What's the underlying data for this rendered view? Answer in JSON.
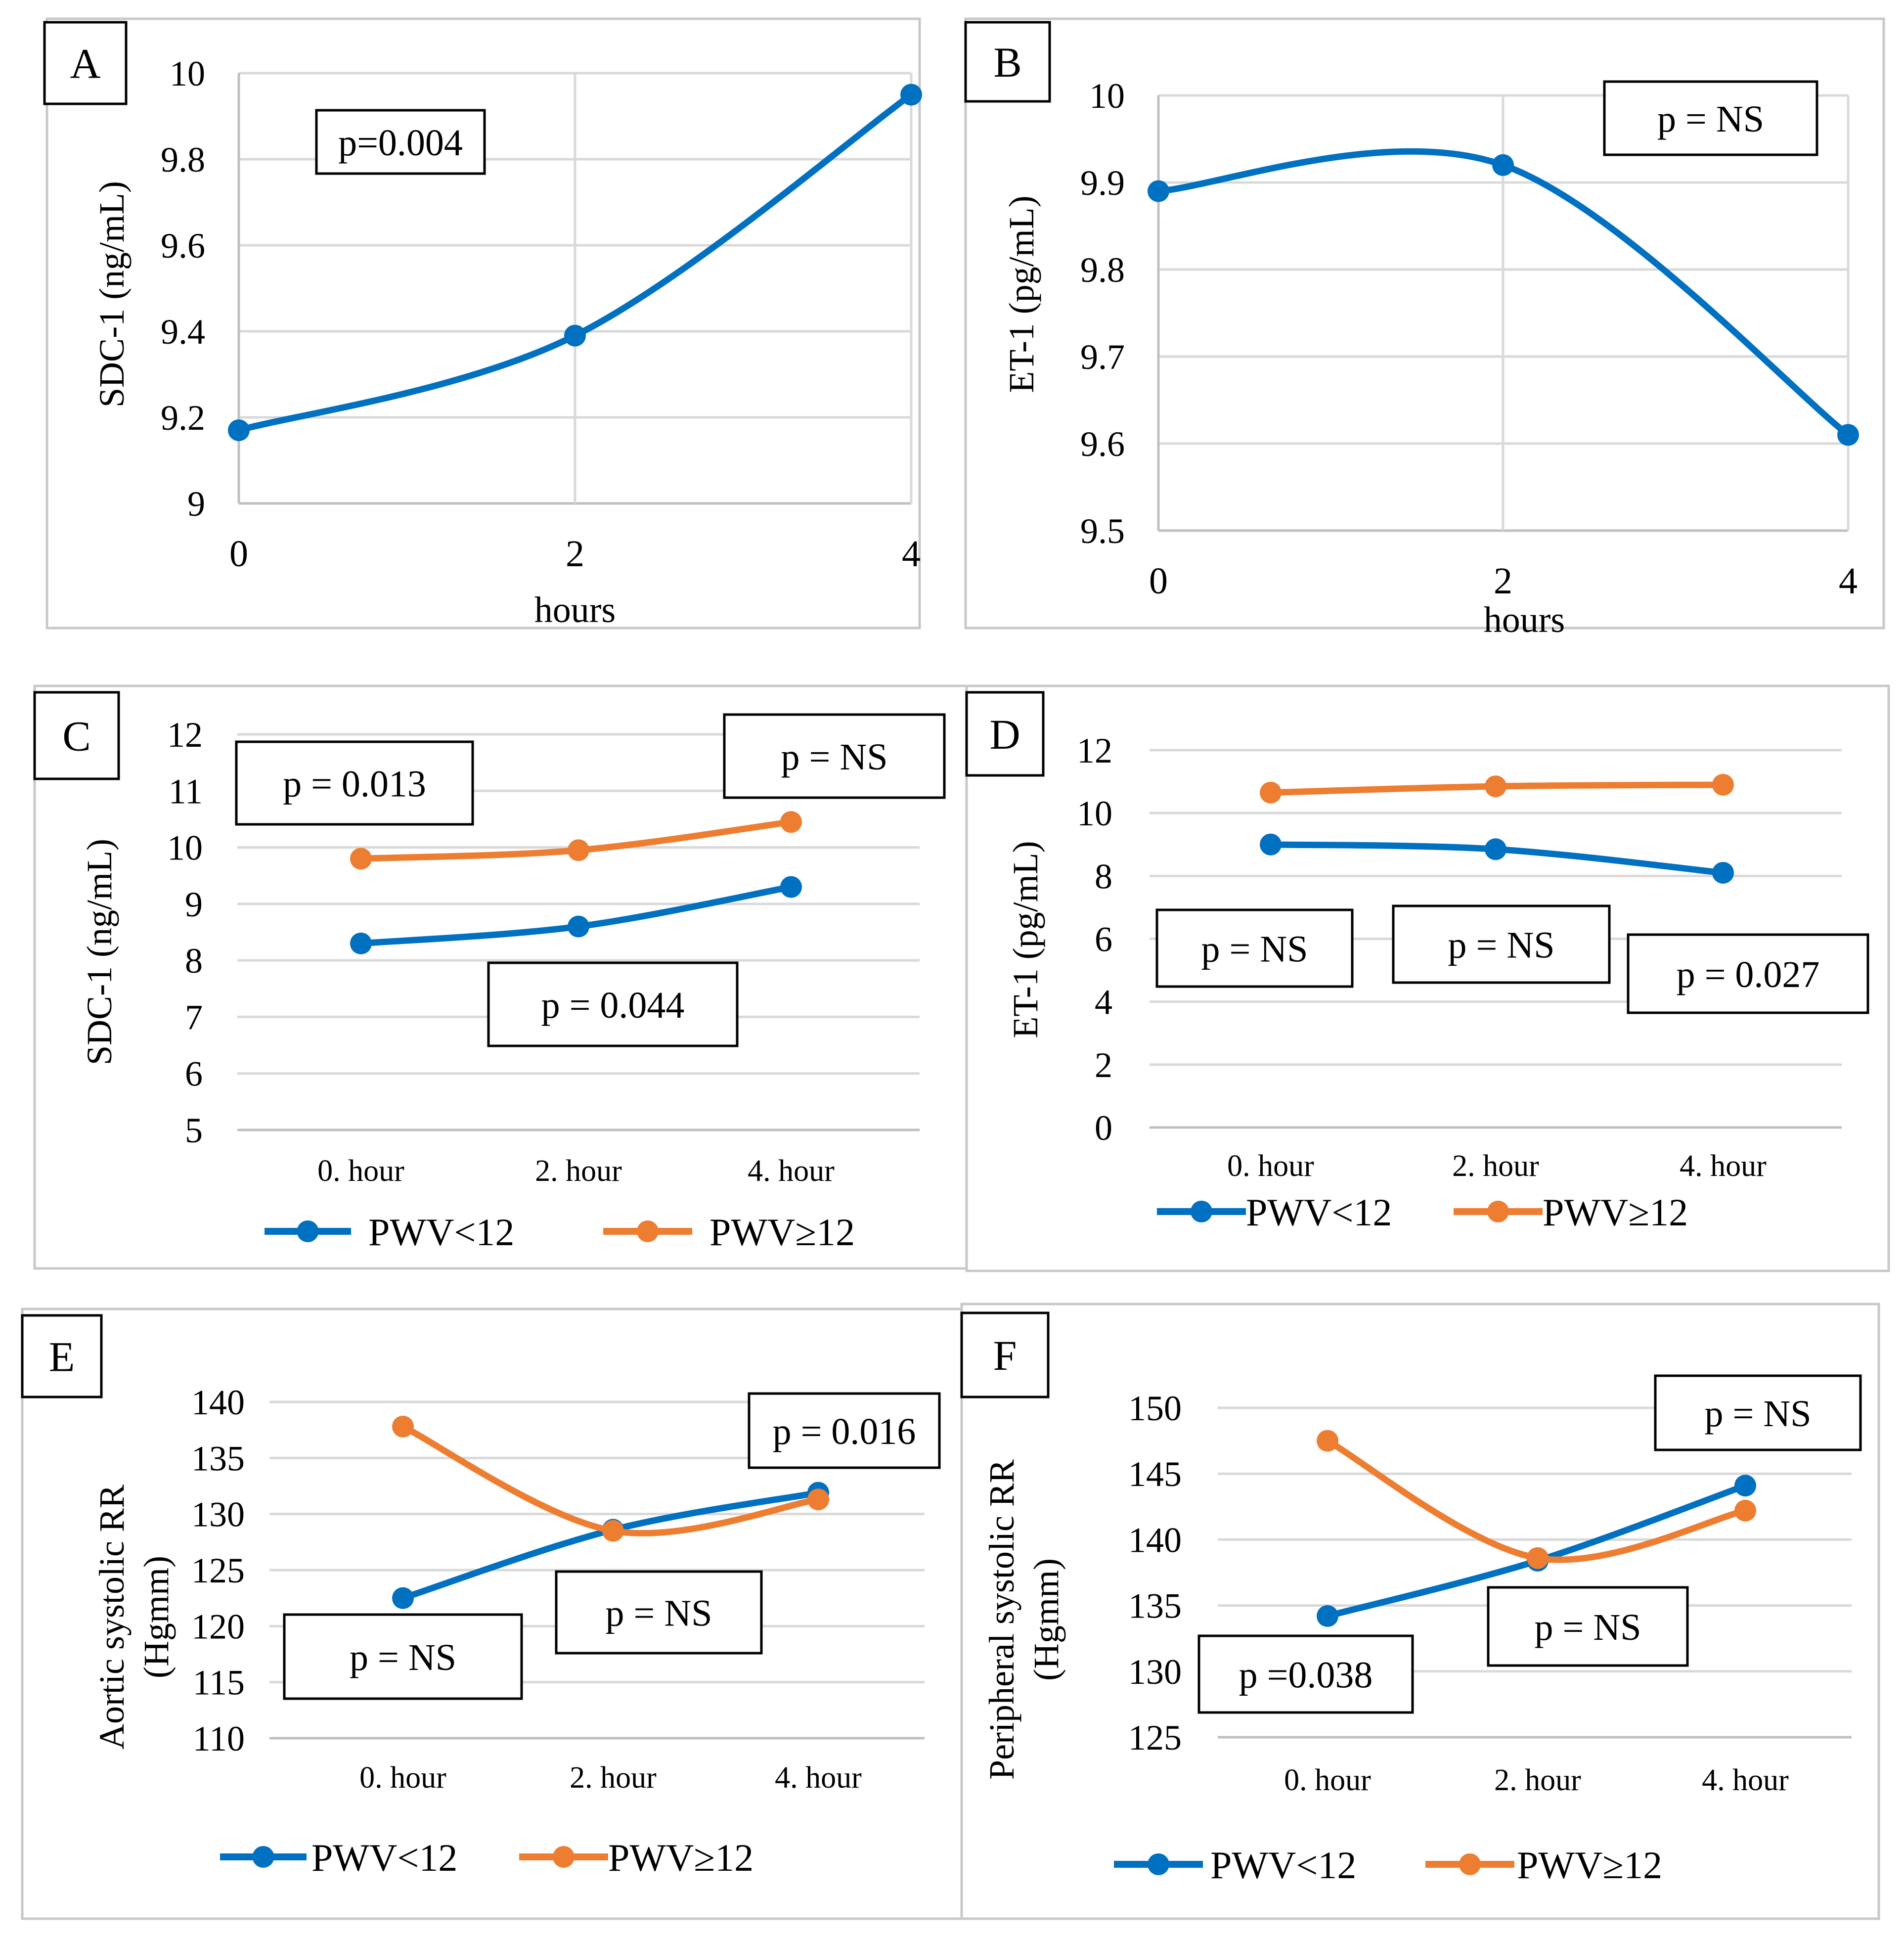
{
  "colors": {
    "blue": "#0070C0",
    "orange": "#ED7D31",
    "grid": "#D9D9D9",
    "frame": "#C8C8C8",
    "text": "#000000"
  },
  "chart_data": [
    {
      "panel": "A",
      "type": "line",
      "smooth": true,
      "xlabel": "hours",
      "ylabel": "SDC-1 (ng/mL)",
      "categories": [
        "0",
        "2",
        "4"
      ],
      "ylim": [
        9,
        10
      ],
      "yticks": [
        "9",
        "9.2",
        "9.4",
        "9.6",
        "9.8",
        "10"
      ],
      "series": [
        {
          "name": "",
          "color": "blue",
          "values": [
            9.17,
            9.39,
            9.95
          ]
        }
      ],
      "annotations": [
        "p=0.004"
      ]
    },
    {
      "panel": "B",
      "type": "line",
      "smooth": true,
      "xlabel": "hours",
      "ylabel": "ET-1 (pg/mL)",
      "categories": [
        "0",
        "2",
        "4"
      ],
      "ylim": [
        9.5,
        10
      ],
      "yticks": [
        "9.5",
        "9.6",
        "9.7",
        "9.8",
        "9.9",
        "10"
      ],
      "series": [
        {
          "name": "",
          "color": "blue",
          "values": [
            9.89,
            9.92,
            9.61
          ]
        }
      ],
      "annotations": [
        "p = NS"
      ]
    },
    {
      "panel": "C",
      "type": "line",
      "smooth": true,
      "xlabel": "",
      "ylabel": "SDC-1 (ng/mL)",
      "categories": [
        "0. hour",
        "2. hour",
        "4. hour"
      ],
      "ylim": [
        5,
        12
      ],
      "yticks": [
        "5",
        "6",
        "7",
        "8",
        "9",
        "10",
        "11",
        "12"
      ],
      "series": [
        {
          "name": "PWV<12",
          "color": "blue",
          "values": [
            8.3,
            8.6,
            9.3
          ]
        },
        {
          "name": "PWV≥12",
          "color": "orange",
          "values": [
            9.8,
            9.95,
            10.45
          ]
        }
      ],
      "legend": "bottom",
      "annotations": [
        "p = 0.013",
        "p = NS",
        "p = 0.044"
      ]
    },
    {
      "panel": "D",
      "type": "line",
      "smooth": true,
      "xlabel": "",
      "ylabel": "ET-1 (pg/mL)",
      "categories": [
        "0. hour",
        "2. hour",
        "4. hour"
      ],
      "ylim": [
        0,
        12
      ],
      "yticks": [
        "0",
        "2",
        "4",
        "6",
        "8",
        "10",
        "12"
      ],
      "series": [
        {
          "name": "PWV<12",
          "color": "blue",
          "values": [
            9.0,
            8.85,
            8.1
          ]
        },
        {
          "name": "PWV≥12",
          "color": "orange",
          "values": [
            10.65,
            10.85,
            10.9
          ]
        }
      ],
      "legend": "bottom",
      "annotations": [
        "p = NS",
        "p = NS",
        "p = 0.027"
      ]
    },
    {
      "panel": "E",
      "type": "line",
      "smooth": true,
      "xlabel": "",
      "ylabel": "Aortic systolic RR (Hgmm)",
      "ylabel_lines": [
        "Aortic systolic RR",
        "(Hgmm)"
      ],
      "categories": [
        "0. hour",
        "2. hour",
        "4. hour"
      ],
      "ylim": [
        110,
        140
      ],
      "yticks": [
        "110",
        "115",
        "120",
        "125",
        "130",
        "135",
        "140"
      ],
      "series": [
        {
          "name": "PWV<12",
          "color": "blue",
          "values": [
            122.5,
            128.6,
            131.9
          ]
        },
        {
          "name": "PWV≥12",
          "color": "orange",
          "values": [
            137.8,
            128.5,
            131.3
          ]
        }
      ],
      "legend": "bottom",
      "annotations": [
        "p = NS",
        "p = NS",
        "p = 0.016"
      ]
    },
    {
      "panel": "F",
      "type": "line",
      "smooth": true,
      "xlabel": "",
      "ylabel": "Peripheral systolic RR (Hgmm)",
      "ylabel_lines": [
        "Peripheral systolic RR",
        "(Hgmm)"
      ],
      "categories": [
        "0. hour",
        "2. hour",
        "4. hour"
      ],
      "ylim": [
        125,
        150
      ],
      "yticks": [
        "125",
        "130",
        "135",
        "140",
        "145",
        "150"
      ],
      "series": [
        {
          "name": "PWV<12",
          "color": "blue",
          "values": [
            134.2,
            138.4,
            144.1
          ]
        },
        {
          "name": "PWV≥12",
          "color": "orange",
          "values": [
            147.5,
            138.6,
            142.2
          ]
        }
      ],
      "legend": "bottom",
      "annotations": [
        "p = NS",
        "p = NS",
        "p =0.038"
      ]
    }
  ]
}
